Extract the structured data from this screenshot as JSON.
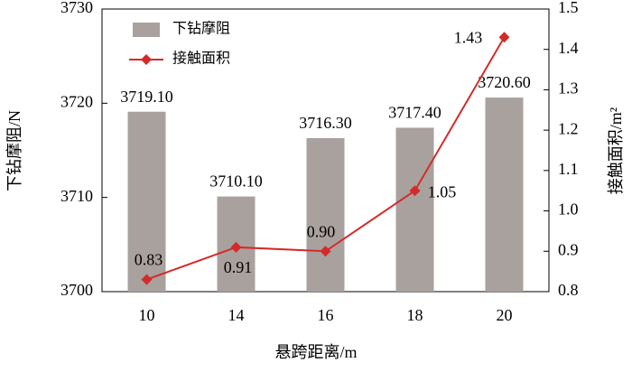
{
  "chart_data": {
    "type": "combo",
    "xlabel": "悬跨距离/m",
    "ylabel": "下钻摩阻/N",
    "y2label": "接触面积/m²",
    "categories": [
      "10",
      "14",
      "16",
      "18",
      "20"
    ],
    "series": [
      {
        "name": "下钻摩阻",
        "type": "bar",
        "color": "#a9a19e",
        "values": [
          3719.1,
          3710.1,
          3716.3,
          3717.4,
          3720.6
        ],
        "value_labels": [
          "3719.10",
          "3710.10",
          "3716.30",
          "3717.40",
          "3720.60"
        ]
      },
      {
        "name": "接触面积",
        "type": "line",
        "axis": "y2",
        "color": "#d42a2a",
        "values": [
          0.83,
          0.91,
          0.9,
          1.05,
          1.43
        ],
        "value_labels": [
          "0.83",
          "0.91",
          "0.90",
          "1.05",
          "1.43"
        ]
      }
    ],
    "ylim": [
      3700,
      3730
    ],
    "yticks": [
      3700,
      3710,
      3720,
      3730
    ],
    "y2lim": [
      0.8,
      1.5
    ],
    "y2ticks": [
      0.8,
      0.9,
      {
        "value": 1,
        "label": "1.0"
      },
      1.1,
      1.2,
      1.3,
      1.4,
      1.5
    ],
    "legend": "upper left"
  }
}
